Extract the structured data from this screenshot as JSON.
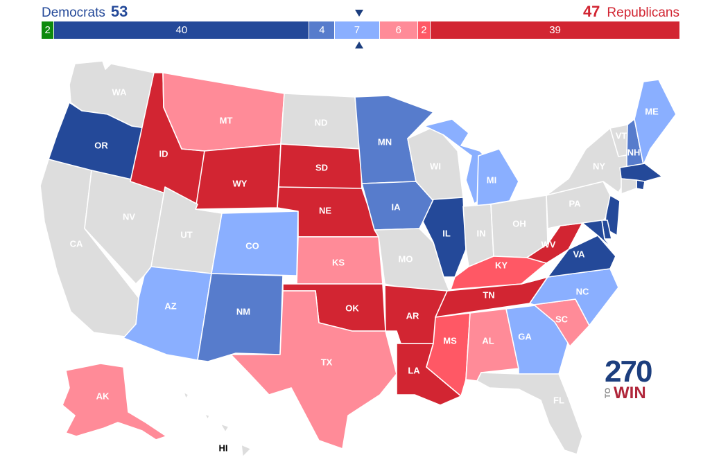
{
  "header": {
    "dem_label": "Democrats",
    "dem_total": "53",
    "rep_total": "47",
    "rep_label": "Republicans"
  },
  "colors": {
    "safe_d": "#244999",
    "likely_d": "#577ccc",
    "lean_d": "#8aafff",
    "tossup": "#dddddd",
    "lean_r": "#ff8b98",
    "likely_r": "#ff5865",
    "safe_r": "#d22532",
    "other": "#0d8a0d"
  },
  "balance_bar": [
    {
      "label": "2",
      "count": 2,
      "color": "#0d8a0d"
    },
    {
      "label": "40",
      "count": 40,
      "color": "#244999"
    },
    {
      "label": "4",
      "count": 4,
      "color": "#577ccc"
    },
    {
      "label": "7",
      "count": 7,
      "color": "#8aafff"
    },
    {
      "label": "6",
      "count": 6,
      "color": "#ff8b98"
    },
    {
      "label": "2",
      "count": 2,
      "color": "#ff5865"
    },
    {
      "label": "39",
      "count": 39,
      "color": "#d22532"
    }
  ],
  "states": {
    "WA": "tossup",
    "OR": "safe_d",
    "CA": "tossup",
    "NV": "tossup",
    "ID": "safe_r",
    "MT": "lean_r",
    "WY": "safe_r",
    "UT": "tossup",
    "AZ": "lean_d",
    "CO": "lean_d",
    "NM": "likely_d",
    "ND": "tossup",
    "SD": "safe_r",
    "NE": "safe_r",
    "KS": "lean_r",
    "OK": "safe_r",
    "TX": "lean_r",
    "MN": "likely_d",
    "IA": "likely_d",
    "MO": "tossup",
    "AR": "safe_r",
    "LA": "safe_r",
    "WI": "tossup",
    "IL": "safe_d",
    "MI": "lean_d",
    "IN": "tossup",
    "OH": "tossup",
    "KY": "likely_r",
    "TN": "safe_r",
    "MS": "likely_r",
    "AL": "lean_r",
    "GA": "lean_d",
    "FL": "tossup",
    "SC": "lean_r",
    "NC": "lean_d",
    "VA": "safe_d",
    "WV": "safe_r",
    "PA": "tossup",
    "NY": "tossup",
    "VT": "tossup",
    "NH": "likely_d",
    "ME": "lean_d",
    "MA": "safe_d",
    "RI": "safe_d",
    "CT": "tossup",
    "NJ": "safe_d",
    "DE": "safe_d",
    "MD": "safe_d",
    "AK": "lean_r",
    "HI": "tossup"
  },
  "labels": {
    "WA": "WA",
    "OR": "OR",
    "CA": "CA",
    "NV": "NV",
    "ID": "ID",
    "MT": "MT",
    "WY": "WY",
    "UT": "UT",
    "AZ": "AZ",
    "CO": "CO",
    "NM": "NM",
    "ND": "ND",
    "SD": "SD",
    "NE": "NE",
    "KS": "KS",
    "OK": "OK",
    "TX": "TX",
    "MN": "MN",
    "IA": "IA",
    "MO": "MO",
    "AR": "AR",
    "LA": "LA",
    "WI": "WI",
    "IL": "IL",
    "MI": "MI",
    "IN": "IN",
    "OH": "OH",
    "KY": "KY",
    "TN": "TN",
    "MS": "MS",
    "AL": "AL",
    "GA": "GA",
    "FL": "FL",
    "SC": "SC",
    "NC": "NC",
    "VA": "VA",
    "WV": "WV",
    "PA": "PA",
    "NY": "NY",
    "VT": "VT",
    "NH": "NH",
    "ME": "ME",
    "AK": "AK",
    "HI": "HI"
  },
  "logo": {
    "number": "270",
    "to": "TO",
    "win": "WIN"
  }
}
